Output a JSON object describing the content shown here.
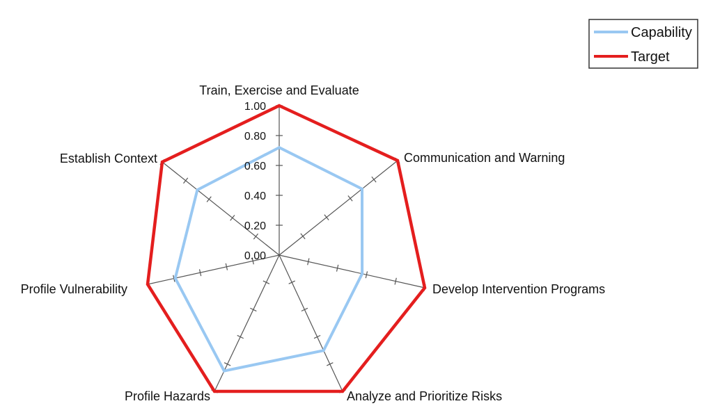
{
  "chart_data": {
    "type": "radar",
    "axes": [
      "Train, Exercise and Evaluate",
      "Communication and Warning",
      "Develop Intervention Programs",
      "Analyze and Prioritize Risks",
      "Profile Hazards",
      "Profile Vulnerability",
      "Establish Context"
    ],
    "rlim": [
      0,
      1
    ],
    "ticks": [
      "0.00",
      "0.20",
      "0.40",
      "0.60",
      "0.80",
      "1.00"
    ],
    "series": [
      {
        "name": "Capability",
        "color": "#99c8f2",
        "values": [
          0.72,
          0.7,
          0.57,
          0.7,
          0.85,
          0.79,
          0.7
        ]
      },
      {
        "name": "Target",
        "color": "#e41e1e",
        "values": [
          1,
          1,
          1,
          1,
          1,
          1,
          1
        ]
      }
    ],
    "legend": "top-right",
    "grid": false
  }
}
